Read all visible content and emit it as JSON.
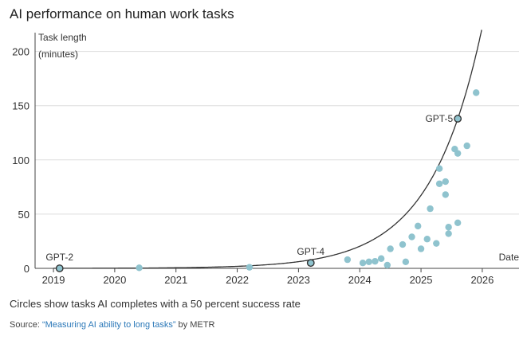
{
  "title": "AI performance on human work tasks",
  "note": "Circles show tasks AI completes with a 50 percent success rate",
  "source": {
    "prefix": "Source: ",
    "link_text": "“Measuring AI ability to long tasks”",
    "suffix": " by METR"
  },
  "colors": {
    "points": "#8fc3ce",
    "highlight_fill": "#8fc3ce",
    "highlight_stroke": "#333333",
    "curve": "#333333",
    "grid": "#dddddd"
  },
  "chart_data": {
    "type": "scatter",
    "title": "AI performance on human work tasks",
    "ylabel_lines": [
      "Task length",
      "(minutes)"
    ],
    "xlabel": "Date",
    "xlim": [
      2018.7,
      2026.6
    ],
    "ylim": [
      0,
      210
    ],
    "xticks": [
      2019,
      2020,
      2021,
      2022,
      2023,
      2024,
      2025,
      2026
    ],
    "yticks": [
      0,
      50,
      100,
      150,
      200
    ],
    "grid": true,
    "points": [
      {
        "x": 2020.4,
        "y": 0.5
      },
      {
        "x": 2022.2,
        "y": 1
      },
      {
        "x": 2023.8,
        "y": 8
      },
      {
        "x": 2024.05,
        "y": 5
      },
      {
        "x": 2024.15,
        "y": 6
      },
      {
        "x": 2024.25,
        "y": 6.5
      },
      {
        "x": 2024.35,
        "y": 9
      },
      {
        "x": 2024.45,
        "y": 3
      },
      {
        "x": 2024.5,
        "y": 18
      },
      {
        "x": 2024.7,
        "y": 22
      },
      {
        "x": 2024.75,
        "y": 6
      },
      {
        "x": 2024.85,
        "y": 29
      },
      {
        "x": 2024.95,
        "y": 39
      },
      {
        "x": 2025.0,
        "y": 18
      },
      {
        "x": 2025.1,
        "y": 27
      },
      {
        "x": 2025.15,
        "y": 55
      },
      {
        "x": 2025.25,
        "y": 23
      },
      {
        "x": 2025.3,
        "y": 78
      },
      {
        "x": 2025.3,
        "y": 92
      },
      {
        "x": 2025.4,
        "y": 80
      },
      {
        "x": 2025.4,
        "y": 68
      },
      {
        "x": 2025.45,
        "y": 38
      },
      {
        "x": 2025.45,
        "y": 32
      },
      {
        "x": 2025.55,
        "y": 110
      },
      {
        "x": 2025.6,
        "y": 106
      },
      {
        "x": 2025.6,
        "y": 42
      },
      {
        "x": 2025.75,
        "y": 113
      },
      {
        "x": 2025.9,
        "y": 162
      }
    ],
    "highlighted": [
      {
        "label": "GPT-2",
        "x": 2019.1,
        "y": 0
      },
      {
        "label": "GPT-4",
        "x": 2023.2,
        "y": 5
      },
      {
        "label": "GPT-5",
        "x": 2025.6,
        "y": 138
      }
    ],
    "trend": {
      "type": "exponential",
      "reference_x": 2025.6,
      "reference_y": 138,
      "doubling_years": 0.58
    }
  }
}
